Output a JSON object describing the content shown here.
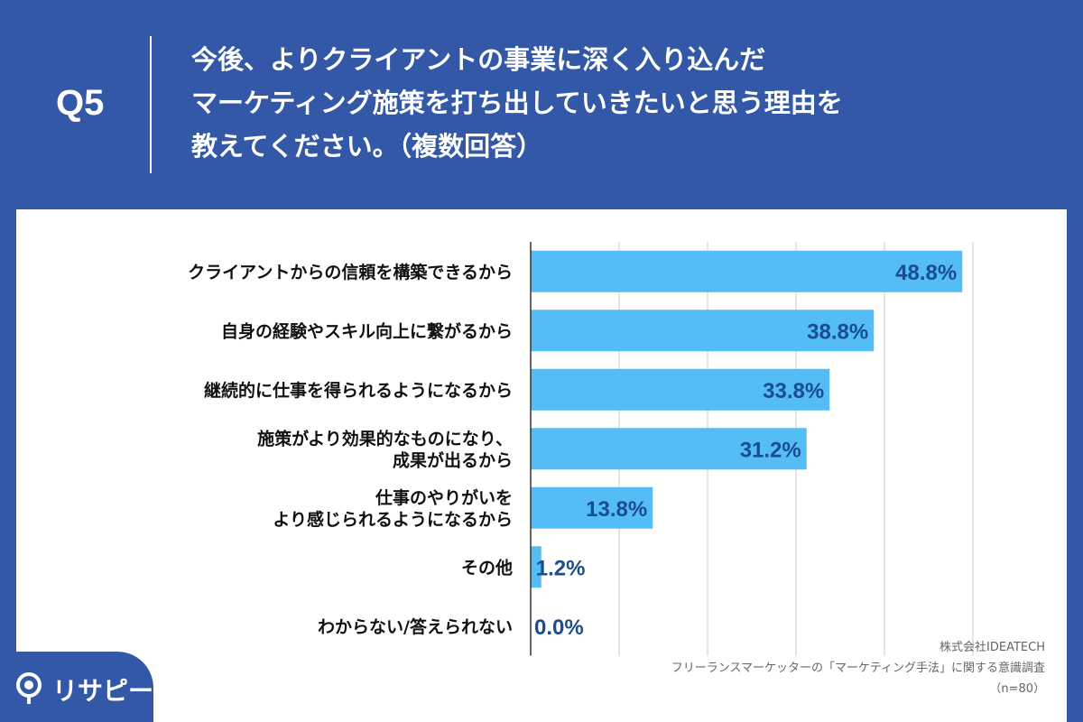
{
  "header": {
    "question_no": "Q5",
    "title_lines": [
      "今後、よりクライアントの事業に深く入り込んだ",
      "マーケティング施策を打ち出していきたいと思う理由を",
      "教えてください。（複数回答）"
    ]
  },
  "credits": {
    "company": "株式会社IDEATECH",
    "survey": "フリーランスマーケッターの「マーケティング手法」に関する意識調査",
    "sample": "（n=80）"
  },
  "logo": {
    "text": "リサピー",
    "icon": "magnifier-pin-icon"
  },
  "colors": {
    "background": "#3358a8",
    "bar": "#55bdf5",
    "value_label": "#1a4d8f",
    "category_label": "#111111",
    "grid": "#cccccc"
  },
  "chart_data": {
    "type": "bar",
    "orientation": "horizontal",
    "categories": [
      [
        "クライアントからの信頼を構築できるから"
      ],
      [
        "自身の経験やスキル向上に繋がるから"
      ],
      [
        "継続的に仕事を得られるようになるから"
      ],
      [
        "施策がより効果的なものになり、",
        "成果が出るから"
      ],
      [
        "仕事のやりがいを",
        "より感じられるようになるから"
      ],
      [
        "その他"
      ],
      [
        "わからない/答えられない"
      ]
    ],
    "values": [
      48.8,
      38.8,
      33.8,
      31.2,
      13.8,
      1.2,
      0.0
    ],
    "value_labels": [
      "48.8%",
      "38.8%",
      "33.8%",
      "31.2%",
      "13.8%",
      "1.2%",
      "0.0%"
    ],
    "xlim": [
      0,
      50
    ],
    "grid": true
  }
}
